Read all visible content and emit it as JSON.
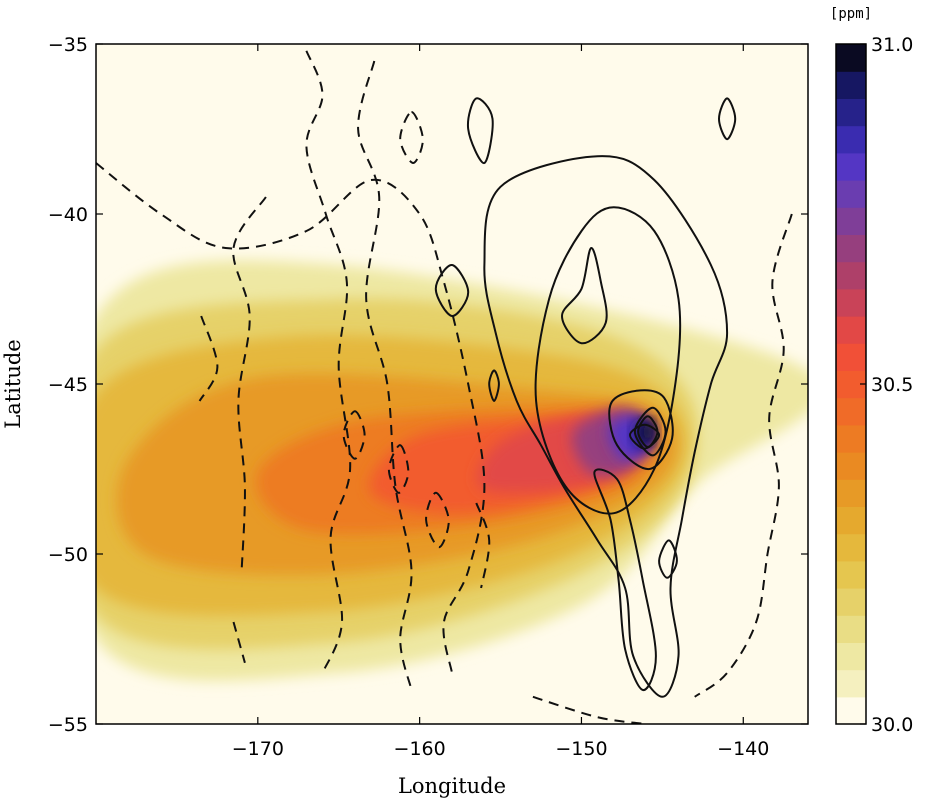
{
  "chart_data": {
    "type": "heatmap",
    "xlabel": "Longitude",
    "ylabel": "Latitude",
    "xlim": [
      -180,
      -136
    ],
    "ylim": [
      -55,
      -35
    ],
    "x_ticks": [
      -170,
      -160,
      -150,
      -140
    ],
    "y_ticks": [
      -35,
      -40,
      -45,
      -50,
      -55
    ],
    "x_tick_labels": [
      "−170",
      "−160",
      "−150",
      "−140"
    ],
    "y_tick_labels": [
      "−35",
      "−40",
      "−45",
      "−50",
      "−55"
    ],
    "colorbar": {
      "unit_label": "[ppm]",
      "range": [
        30.0,
        31.0
      ],
      "ticks": [
        30.0,
        30.5,
        31.0
      ],
      "tick_labels": [
        "30.0",
        "30.5",
        "31.0"
      ],
      "levels": 25,
      "colors": [
        "#fffbeb",
        "#f5f0bf",
        "#eee8a3",
        "#e9dd85",
        "#e6d169",
        "#e5c64f",
        "#e5b83c",
        "#e5a92e",
        "#e79a26",
        "#ea8a22",
        "#ed7b23",
        "#f06b28",
        "#f25c2e",
        "#f15037",
        "#e24846",
        "#c94358",
        "#ae4069",
        "#963f7e",
        "#7f3e98",
        "#6a3db0",
        "#5436c4",
        "#3a2cb0",
        "#26228a",
        "#161762",
        "#0a0a22"
      ]
    },
    "plume_peak": {
      "lon": -146,
      "lat": -46.4,
      "value": 31.0
    },
    "contours": {
      "solid": "positive levels",
      "dashed": "negative levels",
      "color": "#111111"
    },
    "grid": false
  }
}
